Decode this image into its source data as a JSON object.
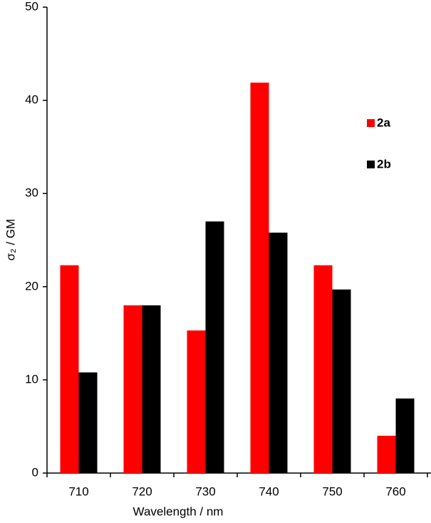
{
  "chart_data": {
    "type": "bar",
    "x_label": "Wavelength / nm",
    "y_label": "σ₂ / GM",
    "categories": [
      "710",
      "720",
      "730",
      "740",
      "750",
      "760"
    ],
    "series": [
      {
        "name": "2a",
        "color": "#ff0000",
        "values": [
          22.3,
          18,
          15.3,
          41.9,
          22.3,
          4
        ]
      },
      {
        "name": "2b",
        "color": "#000000",
        "values": [
          10.8,
          18,
          27,
          25.8,
          19.7,
          8
        ]
      }
    ],
    "ylim": [
      0,
      50
    ],
    "yticks": [
      0,
      10,
      20,
      30,
      40,
      50
    ],
    "grid": false,
    "legend_position": "right"
  }
}
